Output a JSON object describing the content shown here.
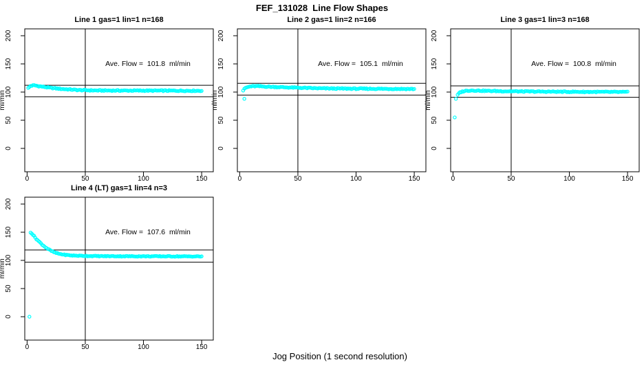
{
  "figure": {
    "title": "FEF_131028  Line Flow Shapes",
    "xlabel": "Jog Position (1 second resolution)",
    "background_color": "#FFFFFF",
    "axis_color": "#000000",
    "point_color": "#00FFFF"
  },
  "chart_data": [
    {
      "type": "scatter",
      "title": "Line 1 gas=1 lin=1 n=168",
      "annotation": "Ave. Flow =  101.8  ml/min",
      "ave_flow_ml_min": 101.8,
      "n": 168,
      "ylabel": "ml/min",
      "xticks": [
        0,
        50,
        100,
        150
      ],
      "yticks": [
        0,
        50,
        100,
        150,
        200
      ],
      "xlim": [
        -2,
        160
      ],
      "ylim": [
        -45,
        215
      ],
      "ref_vline_x": 50,
      "ref_hlines": [
        112.0,
        91.6
      ],
      "x_start": 1,
      "x_end": 150,
      "anchors": [
        [
          1,
          107
        ],
        [
          3,
          111
        ],
        [
          6,
          112
        ],
        [
          10,
          110.5
        ],
        [
          20,
          107.5
        ],
        [
          30,
          105.5
        ],
        [
          45,
          103.5
        ],
        [
          60,
          102.8
        ],
        [
          150,
          102.3
        ]
      ],
      "outliers": [],
      "jitter": 0.9,
      "seed": 1
    },
    {
      "type": "scatter",
      "title": "Line 2 gas=1 lin=2 n=166",
      "annotation": "Ave. Flow =  105.1  ml/min",
      "ave_flow_ml_min": 105.1,
      "n": 166,
      "ylabel": "ml/min",
      "xticks": [
        0,
        50,
        100,
        150
      ],
      "yticks": [
        0,
        50,
        100,
        150,
        200
      ],
      "xlim": [
        -2,
        160
      ],
      "ylim": [
        -45,
        215
      ],
      "ref_vline_x": 50,
      "ref_hlines": [
        115.6,
        94.6
      ],
      "x_start": 3,
      "x_end": 150,
      "anchors": [
        [
          3,
          103
        ],
        [
          5,
          107.5
        ],
        [
          9,
          110
        ],
        [
          14,
          110.5
        ],
        [
          25,
          109.5
        ],
        [
          45,
          108
        ],
        [
          70,
          106.5
        ],
        [
          100,
          106
        ],
        [
          150,
          105.5
        ]
      ],
      "outliers": [
        [
          4,
          88
        ]
      ],
      "jitter": 0.9,
      "seed": 2
    },
    {
      "type": "scatter",
      "title": "Line 3 gas=1 lin=3 n=168",
      "annotation": "Ave. Flow =  100.8  ml/min",
      "ave_flow_ml_min": 100.8,
      "n": 168,
      "ylabel": "ml/min",
      "xticks": [
        0,
        50,
        100,
        150
      ],
      "yticks": [
        0,
        50,
        100,
        150,
        200
      ],
      "xlim": [
        -2,
        160
      ],
      "ylim": [
        -45,
        215
      ],
      "ref_vline_x": 50,
      "ref_hlines": [
        110.9,
        90.7
      ],
      "x_start": 4,
      "x_end": 150,
      "anchors": [
        [
          4,
          95
        ],
        [
          6,
          99.5
        ],
        [
          10,
          102
        ],
        [
          16,
          103
        ],
        [
          30,
          102
        ],
        [
          60,
          101
        ],
        [
          100,
          100.5
        ],
        [
          150,
          100
        ]
      ],
      "outliers": [
        [
          1.5,
          55
        ],
        [
          2.5,
          88
        ]
      ],
      "jitter": 0.9,
      "seed": 3
    },
    {
      "type": "scatter",
      "title": "Line 4 (LT) gas=1 lin=4 n=3",
      "annotation": "Ave. Flow =  107.6  ml/min",
      "ave_flow_ml_min": 107.6,
      "n": 3,
      "ylabel": "ml/min",
      "xticks": [
        0,
        50,
        100,
        150
      ],
      "yticks": [
        0,
        50,
        100,
        150,
        200
      ],
      "xlim": [
        -2,
        160
      ],
      "ylim": [
        -45,
        215
      ],
      "ref_vline_x": 50,
      "ref_hlines": [
        118.4,
        96.8
      ],
      "x_start": 3,
      "x_end": 150,
      "anchors": [
        [
          3,
          150
        ],
        [
          4,
          148
        ],
        [
          6,
          143
        ],
        [
          8,
          138
        ],
        [
          10,
          134
        ],
        [
          13,
          128
        ],
        [
          16,
          123
        ],
        [
          19,
          119
        ],
        [
          22,
          115.5
        ],
        [
          25,
          113
        ],
        [
          28,
          111.5
        ],
        [
          32,
          110
        ],
        [
          38,
          108.8
        ],
        [
          45,
          108.2
        ],
        [
          60,
          107.6
        ],
        [
          90,
          107.3
        ],
        [
          120,
          107.2
        ],
        [
          150,
          107
        ]
      ],
      "outliers": [
        [
          2,
          0
        ]
      ],
      "jitter": 0.7,
      "seed": 4
    }
  ]
}
